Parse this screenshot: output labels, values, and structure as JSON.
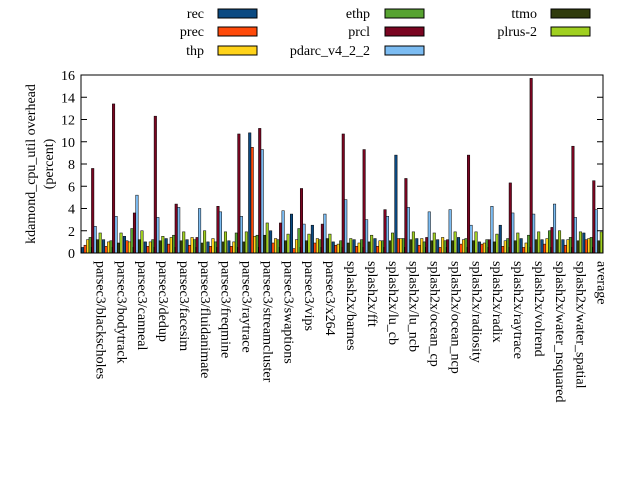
{
  "chart_data": {
    "type": "bar",
    "ylabel": "kdamond_cpu_util overhead\n(percent)",
    "ylim": [
      0,
      16
    ],
    "yticks": [
      0,
      2,
      4,
      6,
      8,
      10,
      12,
      14,
      16
    ],
    "grid": false,
    "legend_position": "top",
    "categories": [
      "parsec3/blackscholes",
      "parsec3/bodytrack",
      "parsec3/canneal",
      "parsec3/dedup",
      "parsec3/facesim",
      "parsec3/fluidanimate",
      "parsec3/freqmine",
      "parsec3/raytrace",
      "parsec3/streamcluster",
      "parsec3/swaptions",
      "parsec3/vips",
      "parsec3/x264",
      "splash2x/barnes",
      "splash2x/fft",
      "splash2x/lu_cb",
      "splash2x/lu_ncb",
      "splash2x/ocean_cp",
      "splash2x/ocean_ncp",
      "splash2x/radiosity",
      "splash2x/radix",
      "splash2x/raytrace",
      "splash2x/volrend",
      "splash2x/water_nsquared",
      "splash2x/water_spatial",
      "average"
    ],
    "series": [
      {
        "name": "rec",
        "color": "#0b4a82",
        "values": [
          0.5,
          1.2,
          1.5,
          1.0,
          1.3,
          1.2,
          1.0,
          1.1,
          10.8,
          2.0,
          3.5,
          2.5,
          1.0,
          1.2,
          1.3,
          8.8,
          1.3,
          1.2,
          1.4,
          1.0,
          2.5,
          1.3,
          1.2,
          1.2,
          1.8
        ]
      },
      {
        "name": "prec",
        "color": "#ff4a0a",
        "values": [
          0.7,
          0.6,
          1.1,
          0.6,
          0.8,
          0.7,
          0.6,
          0.6,
          9.5,
          0.9,
          0.4,
          0.9,
          0.7,
          0.6,
          0.6,
          1.3,
          0.7,
          0.5,
          0.8,
          0.8,
          0.6,
          0.5,
          0.8,
          0.7,
          1.2
        ]
      },
      {
        "name": "thp",
        "color": "#ffd31a",
        "values": [
          1.2,
          1.0,
          1.0,
          1.0,
          1.4,
          1.4,
          1.3,
          1.0,
          1.5,
          1.3,
          1.2,
          1.3,
          0.8,
          0.9,
          1.1,
          1.3,
          1.3,
          1.4,
          1.2,
          0.9,
          1.1,
          0.9,
          1.3,
          1.2,
          1.3
        ]
      },
      {
        "name": "ethp",
        "color": "#57a331",
        "values": [
          1.4,
          1.1,
          2.2,
          1.2,
          1.6,
          1.2,
          1.0,
          1.8,
          1.6,
          1.2,
          2.2,
          1.2,
          1.1,
          1.2,
          1.1,
          1.3,
          1.0,
          1.1,
          1.3,
          1.2,
          1.3,
          1.6,
          2.0,
          1.4,
          1.4
        ]
      },
      {
        "name": "prcl",
        "color": "#7a0521",
        "values": [
          7.6,
          13.4,
          3.6,
          12.3,
          4.4,
          1.4,
          4.2,
          10.7,
          11.2,
          2.7,
          5.8,
          2.6,
          10.7,
          9.3,
          3.9,
          6.7,
          1.4,
          1.2,
          8.8,
          1.2,
          6.3,
          15.7,
          2.3,
          9.6,
          6.5
        ]
      },
      {
        "name": "pdarc_v4_2_2",
        "color": "#7cbcf2",
        "values": [
          2.4,
          3.3,
          5.2,
          3.2,
          4.1,
          4.0,
          3.7,
          3.3,
          9.3,
          3.8,
          2.6,
          3.5,
          4.8,
          3.0,
          3.3,
          4.1,
          3.7,
          3.9,
          2.5,
          4.2,
          3.6,
          3.5,
          4.4,
          3.2,
          3.9
        ]
      },
      {
        "name": "ttmo",
        "color": "#303b0c",
        "values": [
          1.2,
          0.9,
          1.2,
          1.1,
          1.1,
          0.9,
          1.0,
          1.0,
          1.6,
          1.1,
          1.1,
          1.3,
          0.9,
          1.0,
          1.1,
          1.2,
          1.1,
          1.1,
          1.1,
          1.0,
          1.1,
          1.2,
          1.2,
          1.1,
          1.1
        ]
      },
      {
        "name": "plrus-2",
        "color": "#a0d020",
        "values": [
          1.8,
          1.8,
          2.0,
          1.5,
          1.9,
          2.0,
          1.9,
          1.9,
          2.7,
          1.7,
          1.7,
          1.7,
          1.3,
          1.6,
          1.8,
          1.9,
          1.8,
          1.9,
          1.9,
          1.7,
          1.8,
          1.9,
          2.0,
          1.9,
          1.9
        ]
      }
    ]
  }
}
